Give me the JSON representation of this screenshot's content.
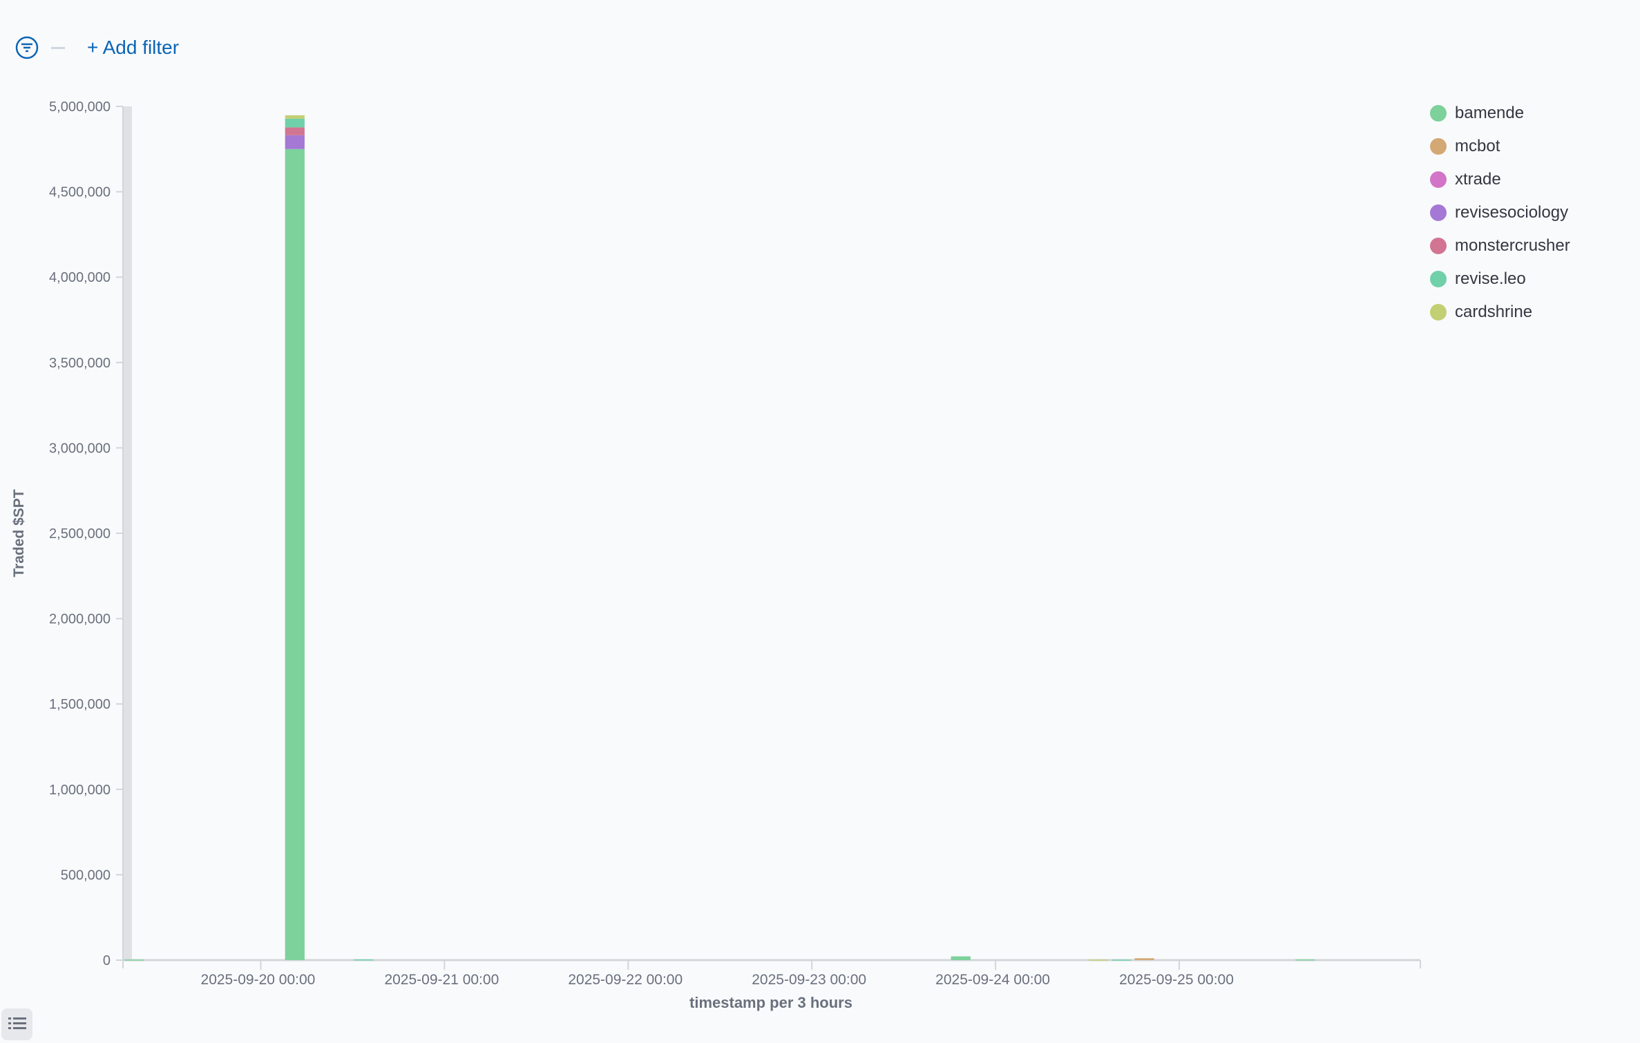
{
  "filter_bar": {
    "add_filter_label": "+ Add filter"
  },
  "chart_data": {
    "type": "bar",
    "stacked": true,
    "xlabel": "timestamp per 3 hours",
    "ylabel": "Traded $SPT",
    "ylim": [
      0,
      5000000
    ],
    "yticks": [
      0,
      500000,
      1000000,
      1500000,
      2000000,
      2500000,
      3000000,
      3500000,
      4000000,
      4500000,
      5000000
    ],
    "ytick_labels": [
      "0",
      "500,000",
      "1,000,000",
      "1,500,000",
      "2,000,000",
      "2,500,000",
      "3,000,000",
      "3,500,000",
      "4,000,000",
      "4,500,000",
      "5,000,000"
    ],
    "xlim": [
      "2025-09-19 06:00",
      "2025-09-26 07:30"
    ],
    "xtick_labels": [
      "2025-09-20 00:00",
      "2025-09-21 00:00",
      "2025-09-22 00:00",
      "2025-09-23 00:00",
      "2025-09-24 00:00",
      "2025-09-25 00:00"
    ],
    "bucket_hours": 3,
    "legend_position": "right",
    "grid": false,
    "series": [
      {
        "name": "bamende",
        "color": "#7dd19b"
      },
      {
        "name": "mcbot",
        "color": "#d4a874"
      },
      {
        "name": "xtrade",
        "color": "#d274c7"
      },
      {
        "name": "revisesociology",
        "color": "#a478d4"
      },
      {
        "name": "monstercrusher",
        "color": "#d27592"
      },
      {
        "name": "revise.leo",
        "color": "#70d0aa"
      },
      {
        "name": "cardshrine",
        "color": "#c3cf73"
      }
    ],
    "buckets": [
      {
        "x": "2025-09-19 06:00",
        "values": {
          "bamende": 3000
        }
      },
      {
        "x": "2025-09-20 03:00",
        "values": {
          "bamende": 4750000,
          "revisesociology": 81000,
          "monstercrusher": 46000,
          "revise.leo": 51000,
          "cardshrine": 20000
        }
      },
      {
        "x": "2025-09-20 12:00",
        "values": {
          "revise.leo": 4000
        }
      },
      {
        "x": "2025-09-23 18:00",
        "values": {
          "bamende": 22000
        }
      },
      {
        "x": "2025-09-24 12:00",
        "values": {
          "cardshrine": 3000
        }
      },
      {
        "x": "2025-09-24 15:00",
        "values": {
          "revise.leo": 3000
        }
      },
      {
        "x": "2025-09-24 18:00",
        "values": {
          "mcbot": 11000
        }
      },
      {
        "x": "2025-09-25 15:00",
        "values": {
          "bamende": 4000
        }
      }
    ]
  }
}
